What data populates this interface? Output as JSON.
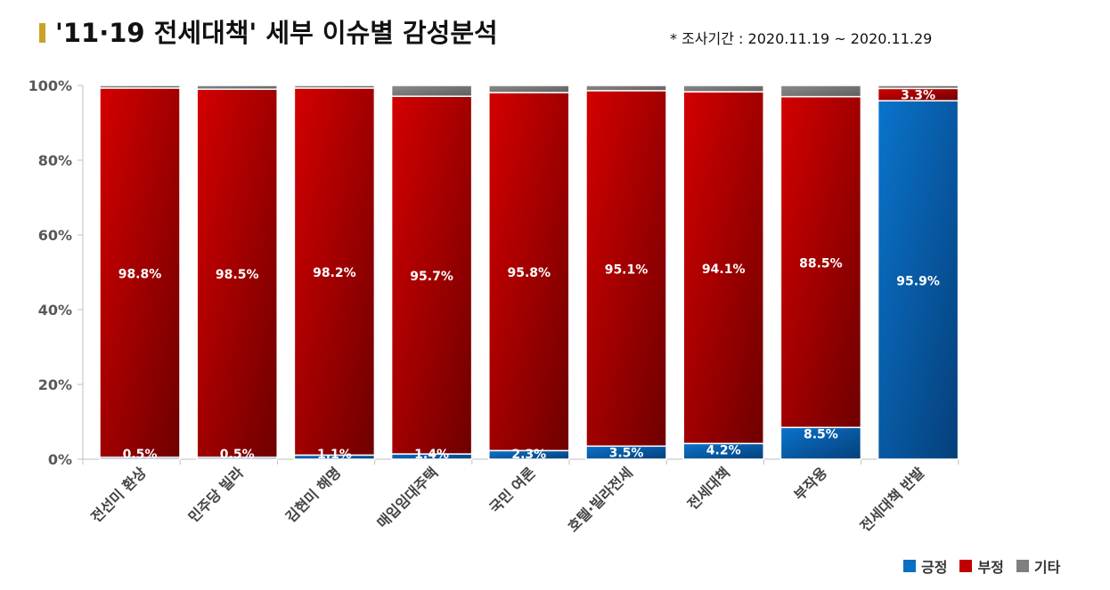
{
  "header": {
    "title": "'11·19 전세대책' 세부 이슈별 감성분석",
    "period": "* 조사기간 : 2020.11.19 ~ 2020.11.29"
  },
  "colors": {
    "positive": "#0b6fc2",
    "negative": "#c00000",
    "other": "#7f7f7f"
  },
  "chart_data": {
    "type": "bar",
    "stacked": true,
    "categories": [
      "전선미 환상",
      "민주당 빌라",
      "김현미 해명",
      "매입임대주택",
      "국민 여론",
      "호텔·빌라전세",
      "전세대책",
      "부작용",
      "전세대책 반발"
    ],
    "series": [
      {
        "name": "긍정",
        "values": [
          0.5,
          0.5,
          1.1,
          1.4,
          2.3,
          3.5,
          4.2,
          8.5,
          95.9
        ],
        "labels": [
          "0.5%",
          "0.5%",
          "1.1%",
          "1.4%",
          "2.3%",
          "3.5%",
          "4.2%",
          "8.5%",
          "95.9%"
        ]
      },
      {
        "name": "부정",
        "values": [
          98.8,
          98.5,
          98.2,
          95.7,
          95.8,
          95.1,
          94.1,
          88.5,
          3.3
        ],
        "labels": [
          "98.8%",
          "98.5%",
          "98.2%",
          "95.7%",
          "95.8%",
          "95.1%",
          "94.1%",
          "88.5%",
          "3.3%"
        ]
      },
      {
        "name": "기타",
        "values": [
          0.7,
          1.0,
          0.7,
          2.9,
          1.9,
          1.4,
          1.7,
          3.0,
          0.8
        ]
      }
    ],
    "yticks": [
      "0%",
      "20%",
      "40%",
      "60%",
      "80%",
      "100%"
    ],
    "ylim": [
      0,
      100
    ],
    "legend_position": "bottom-right"
  }
}
